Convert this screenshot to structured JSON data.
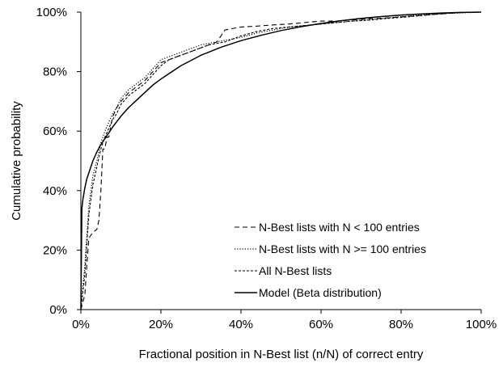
{
  "chart_data": {
    "type": "line",
    "title": "",
    "xlabel": "Fractional position in N-Best list  (n/N) of correct entry",
    "ylabel": "Cumulative probability",
    "xlim": [
      0,
      100
    ],
    "ylim": [
      0,
      100
    ],
    "x_ticks": [
      "0%",
      "20%",
      "40%",
      "60%",
      "80%",
      "100%"
    ],
    "y_ticks": [
      "0%",
      "20%",
      "40%",
      "60%",
      "80%",
      "100%"
    ],
    "grid": false,
    "legend_position": "bottom-right",
    "series": [
      {
        "name": "N-Best lists with N < 100 entries",
        "style": "long-dash",
        "color": "#000000",
        "x": [
          0,
          1,
          1.5,
          2,
          2.5,
          3,
          4,
          4.5,
          5,
          5.5,
          6,
          6.5,
          7,
          7.5,
          8,
          9,
          10,
          12,
          14,
          16,
          18,
          20,
          24,
          26,
          28,
          30,
          32,
          34,
          36,
          38,
          40,
          44,
          48,
          52,
          56,
          60,
          64,
          68,
          72,
          76,
          80,
          84,
          88,
          92,
          96,
          100
        ],
        "y": [
          0,
          5,
          15,
          24,
          25,
          26,
          27,
          30,
          40,
          54,
          54,
          58,
          58,
          62,
          65,
          68,
          70,
          73,
          75,
          77,
          80,
          83,
          85,
          86,
          87,
          88,
          89,
          90,
          94,
          94.5,
          95,
          95.3,
          95.7,
          96,
          96.5,
          97,
          97,
          97.4,
          97.8,
          98,
          98.4,
          98.8,
          99.2,
          99.6,
          100,
          100
        ]
      },
      {
        "name": "N-Best lists with N >= 100 entries",
        "style": "dotted",
        "color": "#000000",
        "x": [
          0,
          0.5,
          1,
          1.5,
          2,
          3,
          4,
          5,
          6,
          7,
          8,
          9,
          10,
          12,
          14,
          16,
          18,
          20,
          22,
          24,
          26,
          28,
          30,
          32,
          34,
          36,
          38,
          40,
          44,
          48,
          52,
          56,
          60,
          64,
          68,
          72,
          76,
          80,
          84,
          88,
          92,
          96,
          100
        ],
        "y": [
          0,
          8,
          15,
          25,
          35,
          45,
          50,
          56,
          60,
          63,
          66,
          68,
          71,
          74,
          76,
          78,
          81,
          84,
          85,
          86,
          87,
          88,
          89,
          89.5,
          90,
          90.5,
          91,
          91.5,
          93,
          94,
          95,
          95.5,
          96,
          96.5,
          97,
          97.5,
          98,
          98.5,
          99,
          99.3,
          99.6,
          99.8,
          100
        ]
      },
      {
        "name": "All N-Best lists",
        "style": "short-dash",
        "color": "#000000",
        "x": [
          0,
          0.5,
          1,
          1.5,
          2,
          3,
          4,
          5,
          6,
          7,
          8,
          9,
          10,
          12,
          14,
          16,
          18,
          20,
          22,
          24,
          26,
          28,
          30,
          32,
          34,
          36,
          38,
          40,
          44,
          48,
          52,
          56,
          60,
          64,
          68,
          72,
          76,
          80,
          84,
          88,
          92,
          96,
          100
        ],
        "y": [
          0,
          6,
          12,
          22,
          32,
          42,
          48,
          54,
          58,
          61,
          64,
          66,
          69,
          72,
          74,
          76,
          79,
          82,
          84,
          85,
          86,
          87,
          88,
          89,
          89.5,
          90,
          91,
          92,
          93.5,
          94.5,
          95,
          95.5,
          96,
          96.5,
          97,
          97.3,
          97.8,
          98.2,
          98.7,
          99.2,
          99.6,
          99.9,
          100
        ]
      },
      {
        "name": "Model (Beta distribution)",
        "style": "solid",
        "color": "#000000",
        "x": [
          0,
          0.25,
          0.5,
          1,
          1.5,
          2,
          3,
          4,
          5,
          6,
          7,
          8,
          10,
          12,
          14,
          16,
          18,
          20,
          25,
          30,
          35,
          40,
          45,
          50,
          55,
          60,
          65,
          70,
          75,
          80,
          85,
          90,
          95,
          100
        ],
        "y": [
          0,
          34,
          37,
          41,
          44,
          46,
          50,
          53,
          55.5,
          57.5,
          59.5,
          61.5,
          65,
          68,
          70.5,
          73,
          75.5,
          77.5,
          82,
          85.5,
          88.2,
          90.4,
          92.2,
          93.8,
          95.1,
          96.2,
          97.1,
          97.9,
          98.5,
          99.0,
          99.4,
          99.7,
          99.9,
          100
        ]
      }
    ]
  }
}
